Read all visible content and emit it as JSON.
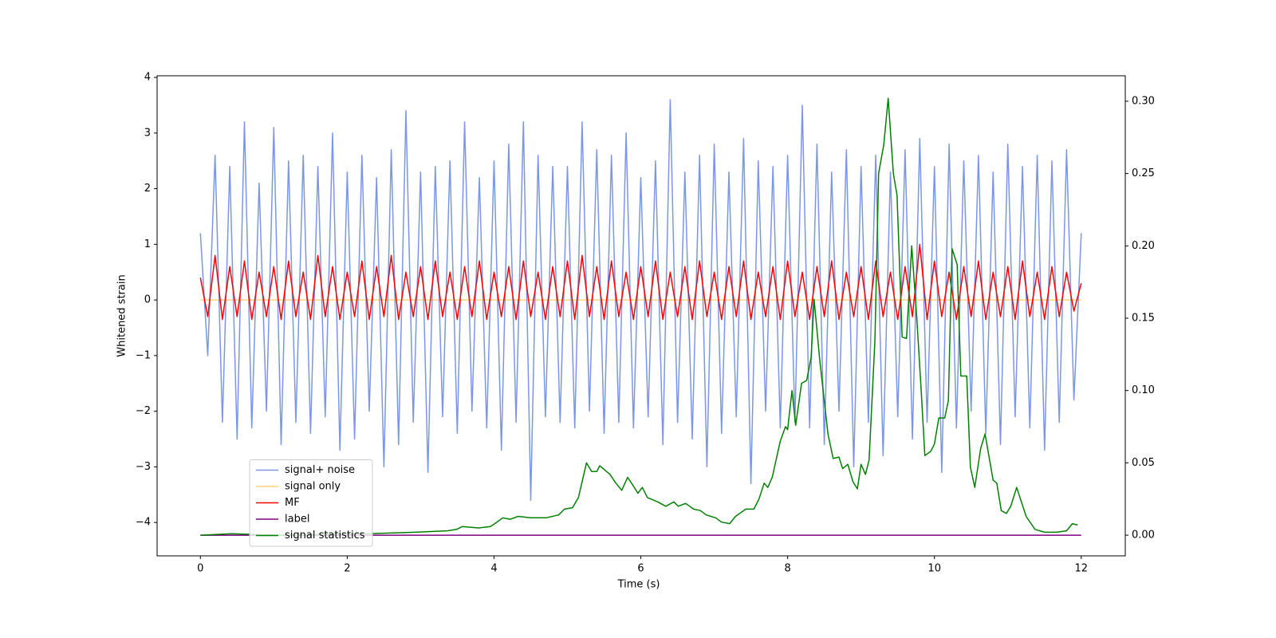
{
  "chart_data": {
    "type": "line",
    "xlabel": "Time (s)",
    "ylabel": "Whitened strain",
    "xlim": [
      -0.59,
      12.6
    ],
    "ylim": [
      -4.6,
      4.03
    ],
    "y2lim": [
      -0.0143,
      0.3176
    ],
    "xticks": [
      0,
      2,
      4,
      6,
      8,
      10,
      12
    ],
    "yticks": [
      {
        "value": -4,
        "label": "−4"
      },
      {
        "value": -3,
        "label": "−3"
      },
      {
        "value": -2,
        "label": "−2"
      },
      {
        "value": -1,
        "label": "−1"
      },
      0,
      1,
      2,
      3,
      4
    ],
    "y2ticks": [
      {
        "value": 0,
        "label": "0.00"
      },
      {
        "value": 0.05,
        "label": "0.05"
      },
      {
        "value": 0.1,
        "label": "0.10"
      },
      {
        "value": 0.15,
        "label": "0.15"
      },
      {
        "value": 0.2,
        "label": "0.20"
      },
      {
        "value": 0.25,
        "label": "0.25"
      },
      {
        "value": 0.3,
        "label": "0.30"
      }
    ],
    "legend": "lower left",
    "x": [
      0,
      0.1,
      0.2,
      0.3,
      0.4,
      0.5,
      0.6,
      0.7,
      0.8,
      0.9,
      1,
      1.1,
      1.2,
      1.3,
      1.4,
      1.5,
      1.6,
      1.7,
      1.8,
      1.9,
      2,
      2.1,
      2.2,
      2.3,
      2.4,
      2.5,
      2.6,
      2.7,
      2.8,
      2.9,
      3,
      3.1,
      3.2,
      3.3,
      3.4,
      3.5,
      3.6,
      3.7,
      3.8,
      3.9,
      4,
      4.1,
      4.2,
      4.3,
      4.4,
      4.5,
      4.6,
      4.7,
      4.8,
      4.9,
      5,
      5.1,
      5.2,
      5.3,
      5.4,
      5.5,
      5.6,
      5.7,
      5.8,
      5.9,
      6,
      6.1,
      6.2,
      6.3,
      6.4,
      6.5,
      6.6,
      6.7,
      6.8,
      6.9,
      7,
      7.1,
      7.2,
      7.3,
      7.4,
      7.5,
      7.6,
      7.7,
      7.8,
      7.9,
      8,
      8.1,
      8.2,
      8.3,
      8.4,
      8.5,
      8.6,
      8.7,
      8.8,
      8.9,
      9,
      9.1,
      9.2,
      9.3,
      9.4,
      9.5,
      9.6,
      9.7,
      9.8,
      9.9,
      10,
      10.1,
      10.2,
      10.3,
      10.4,
      10.5,
      10.6,
      10.7,
      10.8,
      10.9,
      11,
      11.1,
      11.2,
      11.3,
      11.4,
      11.5,
      11.6,
      11.7,
      11.8,
      11.9,
      12
    ],
    "series": [
      {
        "name": "signal+ noise",
        "color": "#7b96e8",
        "values": [
          1.2,
          -1.0,
          2.6,
          -2.2,
          2.4,
          -2.5,
          3.2,
          -2.3,
          2.1,
          -2.0,
          3.1,
          -2.6,
          2.5,
          -2.2,
          2.6,
          -2.4,
          2.4,
          -2.1,
          3.0,
          -2.7,
          2.3,
          -2.5,
          2.6,
          -2.0,
          2.2,
          -3.0,
          2.7,
          -2.6,
          3.4,
          -2.2,
          2.3,
          -3.1,
          2.4,
          -2.1,
          2.5,
          -2.4,
          3.2,
          -2.0,
          2.2,
          -2.3,
          2.5,
          -2.7,
          2.8,
          -2.2,
          3.2,
          -3.6,
          2.6,
          -2.1,
          2.4,
          -2.2,
          2.4,
          -2.3,
          3.2,
          -2.0,
          2.7,
          -2.4,
          2.6,
          -2.2,
          3.0,
          -2.3,
          2.2,
          -2.1,
          2.5,
          -2.6,
          3.6,
          -2.2,
          2.3,
          -2.5,
          2.6,
          -3.0,
          2.8,
          -2.4,
          2.3,
          -2.1,
          2.9,
          -3.3,
          2.5,
          -2.0,
          2.4,
          -2.3,
          2.6,
          -2.2,
          3.5,
          -2.3,
          2.8,
          -2.6,
          2.3,
          -2.0,
          2.7,
          -3.0,
          2.4,
          -2.2,
          2.6,
          -2.8,
          2.3,
          -2.1,
          2.7,
          -2.5,
          2.9,
          -2.2,
          2.4,
          -3.1,
          2.8,
          -2.3,
          2.5,
          -2.0,
          2.6,
          -2.4,
          2.3,
          -2.6,
          2.8,
          -2.1,
          2.4,
          -2.3,
          2.6,
          -2.7,
          2.5,
          -2.2,
          2.7,
          -1.8,
          1.2
        ]
      },
      {
        "name": "signal only",
        "color": "#ffa500",
        "x": [
          0,
          12
        ],
        "values": [
          0,
          0
        ]
      },
      {
        "name": "MF",
        "color": "#ff0000",
        "values": [
          0.4,
          -0.3,
          0.8,
          -0.35,
          0.6,
          -0.3,
          0.7,
          -0.35,
          0.5,
          -0.3,
          0.6,
          -0.35,
          0.7,
          -0.3,
          0.5,
          -0.35,
          0.8,
          -0.3,
          0.6,
          -0.35,
          0.5,
          -0.3,
          0.7,
          -0.35,
          0.6,
          -0.3,
          0.8,
          -0.35,
          0.5,
          -0.3,
          0.6,
          -0.35,
          0.7,
          -0.3,
          0.5,
          -0.35,
          0.6,
          -0.3,
          0.7,
          -0.35,
          0.5,
          -0.3,
          0.6,
          -0.35,
          0.7,
          -0.3,
          0.5,
          -0.35,
          0.6,
          -0.3,
          0.7,
          -0.35,
          0.8,
          -0.3,
          0.6,
          -0.35,
          0.7,
          -0.3,
          0.5,
          -0.35,
          0.6,
          -0.3,
          0.7,
          -0.35,
          0.5,
          -0.3,
          0.6,
          -0.35,
          0.7,
          -0.3,
          0.5,
          -0.35,
          0.6,
          -0.3,
          0.7,
          -0.35,
          0.5,
          -0.3,
          0.6,
          -0.35,
          0.7,
          -0.3,
          0.5,
          -0.35,
          0.6,
          -0.3,
          0.7,
          -0.35,
          0.5,
          -0.3,
          0.6,
          -0.35,
          0.7,
          -0.3,
          0.5,
          -0.35,
          0.6,
          -0.3,
          1.0,
          -0.35,
          0.7,
          -0.3,
          0.5,
          -0.35,
          0.6,
          -0.3,
          0.7,
          -0.35,
          0.5,
          -0.3,
          0.6,
          -0.35,
          0.7,
          -0.3,
          0.5,
          -0.35,
          0.6,
          -0.3,
          0.5,
          -0.2,
          0.3
        ]
      },
      {
        "name": "label",
        "color": "#800080",
        "axis": "y2",
        "x": [
          0,
          12
        ],
        "values": [
          0,
          0
        ]
      },
      {
        "name": "signal statistics",
        "color": "#008000",
        "axis": "y2",
        "x": [
          0,
          0.42,
          1.08,
          2.27,
          2.92,
          3.36,
          3.49,
          3.57,
          3.79,
          3.95,
          4.01,
          4.12,
          4.22,
          4.33,
          4.5,
          4.71,
          4.88,
          4.96,
          5.07,
          5.15,
          5.26,
          5.33,
          5.4,
          5.44,
          5.58,
          5.66,
          5.74,
          5.82,
          5.91,
          5.96,
          6.02,
          6.09,
          6.23,
          6.34,
          6.45,
          6.51,
          6.61,
          6.72,
          6.81,
          6.89,
          7.02,
          7.1,
          7.21,
          7.29,
          7.43,
          7.54,
          7.61,
          7.68,
          7.73,
          7.79,
          7.9,
          7.97,
          8.0,
          8.06,
          8.11,
          8.19,
          8.26,
          8.32,
          8.36,
          8.44,
          8.55,
          8.62,
          8.7,
          8.75,
          8.82,
          8.89,
          8.95,
          9.0,
          9.06,
          9.11,
          9.19,
          9.24,
          9.31,
          9.37,
          9.44,
          9.49,
          9.56,
          9.62,
          9.69,
          9.76,
          9.82,
          9.87,
          9.95,
          10.0,
          10.06,
          10.14,
          10.19,
          10.24,
          10.31,
          10.36,
          10.44,
          10.49,
          10.55,
          10.63,
          10.69,
          10.8,
          10.85,
          10.91,
          10.98,
          11.04,
          11.12,
          11.25,
          11.37,
          11.5,
          11.66,
          11.8,
          11.88,
          11.95
        ],
        "values": [
          0,
          0.001,
          0,
          0.001,
          0.002,
          0.003,
          0.004,
          0.006,
          0.005,
          0.006,
          0.008,
          0.012,
          0.011,
          0.013,
          0.012,
          0.012,
          0.014,
          0.018,
          0.019,
          0.026,
          0.05,
          0.044,
          0.044,
          0.048,
          0.042,
          0.036,
          0.031,
          0.04,
          0.033,
          0.029,
          0.033,
          0.026,
          0.023,
          0.02,
          0.023,
          0.02,
          0.022,
          0.018,
          0.017,
          0.014,
          0.012,
          0.009,
          0.008,
          0.013,
          0.018,
          0.018,
          0.025,
          0.036,
          0.033,
          0.04,
          0.065,
          0.075,
          0.073,
          0.1,
          0.076,
          0.105,
          0.107,
          0.123,
          0.163,
          0.12,
          0.07,
          0.053,
          0.054,
          0.046,
          0.049,
          0.037,
          0.032,
          0.049,
          0.042,
          0.052,
          0.135,
          0.25,
          0.27,
          0.302,
          0.25,
          0.235,
          0.137,
          0.136,
          0.2,
          0.15,
          0.1,
          0.055,
          0.058,
          0.063,
          0.081,
          0.081,
          0.093,
          0.198,
          0.187,
          0.11,
          0.11,
          0.047,
          0.033,
          0.06,
          0.07,
          0.038,
          0.036,
          0.017,
          0.015,
          0.02,
          0.033,
          0.013,
          0.004,
          0.002,
          0.002,
          0.003,
          0.008,
          0.007
        ]
      }
    ]
  }
}
